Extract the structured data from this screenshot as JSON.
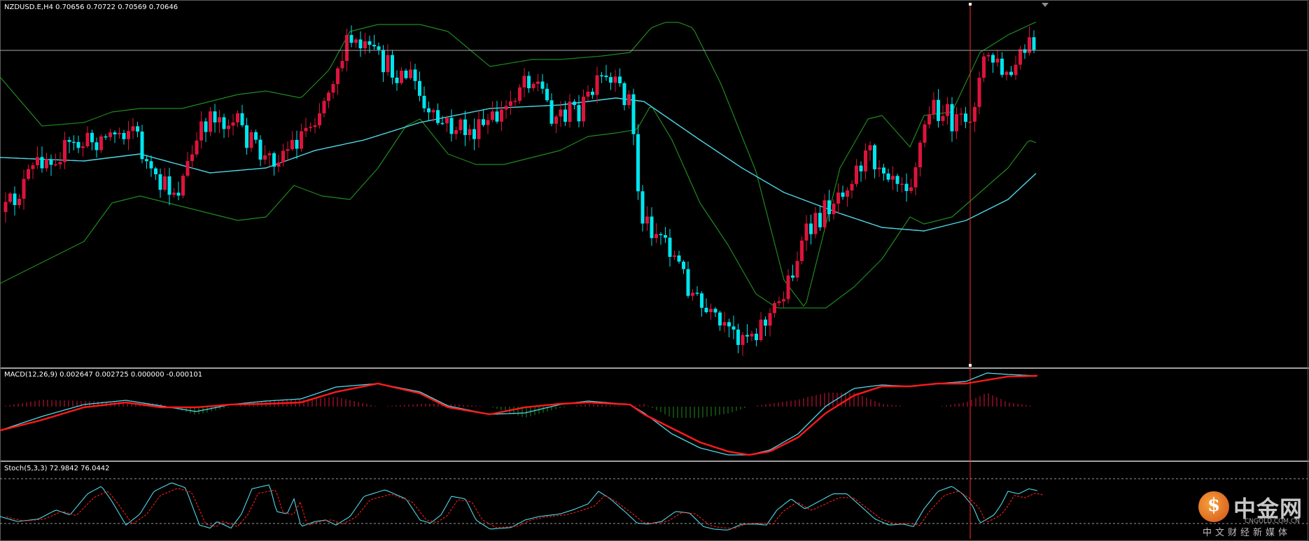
{
  "panels": {
    "main": {
      "label": "NZDUSD.E,H4  0.70656 0.70722 0.70569 0.70646"
    },
    "macd": {
      "label": "MACD(12,26,9) 0.002647 0.002725 0.000000 -0.000101"
    },
    "stoch": {
      "label": "Stoch(5,3,3) 72.9842 76.0442"
    }
  },
  "watermark": {
    "logo_glyph": "$",
    "name": "中金网",
    "domain": "CNGOLD.COM.CN",
    "slogan": "中文财经新媒体"
  },
  "colors": {
    "background": "#000000",
    "bull_candle": "#dc143c",
    "bear_candle": "#00e5ee",
    "bollinger": "#1f8a1f",
    "moving_average": "#4fd8e8",
    "price_line": "#a9a9a9",
    "crosshair": "#ff2a2a",
    "macd_line": "#4fd8e8",
    "signal_line": "#ff1a1a",
    "hist_up": "#dc143c",
    "hist_down": "#1f8a1f",
    "stoch_main": "#4fd8e8",
    "stoch_signal": "#ff1a1a",
    "separator": "#a0a0a0"
  },
  "chart_data": [
    {
      "type": "candlestick",
      "symbol": "NZDUSD.E",
      "timeframe": "H4",
      "last_bar": {
        "open": 0.70656,
        "high": 0.70722,
        "low": 0.70569,
        "close": 0.70646
      },
      "indicators": [
        "bollinger-bands",
        "moving-average"
      ],
      "current_price_line": 0.70646
    },
    {
      "type": "line",
      "indicator": "MACD",
      "params": [
        12,
        26,
        9
      ],
      "values": [
        0.002647,
        0.002725,
        0.0,
        -0.000101
      ]
    },
    {
      "type": "line",
      "indicator": "Stochastic",
      "params": [
        5,
        3,
        3
      ],
      "main": 72.9842,
      "signal": 76.0442,
      "levels": [
        20,
        80
      ]
    }
  ]
}
